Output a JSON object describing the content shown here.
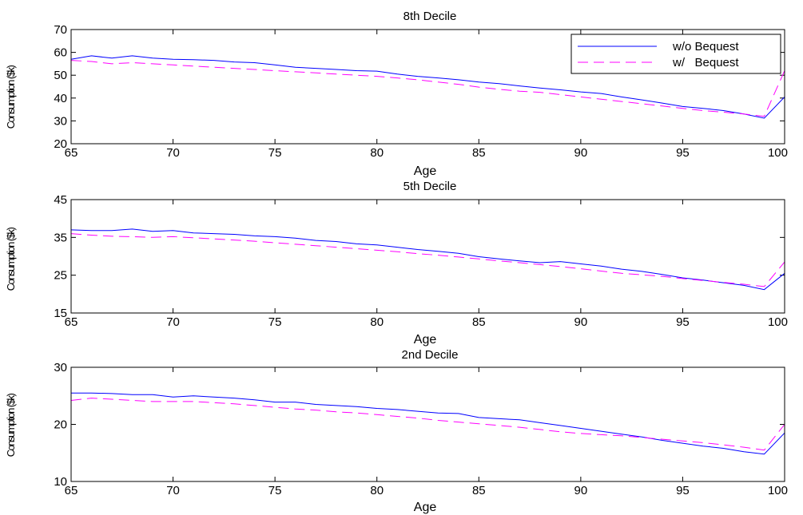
{
  "chart_data": [
    {
      "type": "line",
      "title": "8th Decile",
      "xlabel": "Age",
      "ylabel": "Consumption ($k)",
      "xlim": [
        65,
        100
      ],
      "ylim": [
        20,
        70
      ],
      "xticks": [
        65,
        70,
        75,
        80,
        85,
        90,
        95,
        100
      ],
      "yticks": [
        20,
        30,
        40,
        50,
        60,
        70
      ],
      "legend": "top-right",
      "x": [
        65,
        66,
        67,
        68,
        69,
        70,
        71,
        72,
        73,
        74,
        75,
        76,
        77,
        78,
        79,
        80,
        81,
        82,
        83,
        84,
        85,
        86,
        87,
        88,
        89,
        90,
        91,
        92,
        93,
        94,
        95,
        96,
        97,
        98,
        99,
        100
      ],
      "series": [
        {
          "name": "w/o Bequest",
          "color": "#0000ff",
          "dash": "solid",
          "values": [
            57,
            58.5,
            57.5,
            58.5,
            57.5,
            57,
            56.8,
            56.5,
            55.8,
            55.5,
            54.5,
            53.5,
            53,
            52.5,
            52,
            51.8,
            50.5,
            49.5,
            48.8,
            48,
            47,
            46.3,
            45.3,
            44.4,
            43.6,
            42.7,
            42,
            40.5,
            39.2,
            37.8,
            36.3,
            35.5,
            34.5,
            33,
            31.2,
            40.5
          ]
        },
        {
          "name": "w/   Bequest",
          "color": "#ff00ff",
          "dash": "dashed",
          "values": [
            56.5,
            56,
            55,
            55.5,
            55,
            54.5,
            54,
            53.5,
            53,
            52.5,
            52,
            51.5,
            51,
            50.5,
            50,
            49.5,
            48.8,
            48,
            47,
            46,
            44.8,
            43.8,
            43,
            42.5,
            41.5,
            40.5,
            39.5,
            38.5,
            37.5,
            36.5,
            35.5,
            34.5,
            33.8,
            33,
            32,
            52
          ]
        }
      ]
    },
    {
      "type": "line",
      "title": "5th Decile",
      "xlabel": "Age",
      "ylabel": "Consumption ($k)",
      "xlim": [
        65,
        100
      ],
      "ylim": [
        15,
        45
      ],
      "xticks": [
        65,
        70,
        75,
        80,
        85,
        90,
        95,
        100
      ],
      "yticks": [
        15,
        25,
        35,
        45
      ],
      "x": [
        65,
        66,
        67,
        68,
        69,
        70,
        71,
        72,
        73,
        74,
        75,
        76,
        77,
        78,
        79,
        80,
        81,
        82,
        83,
        84,
        85,
        86,
        87,
        88,
        89,
        90,
        91,
        92,
        93,
        94,
        95,
        96,
        97,
        98,
        99,
        100
      ],
      "series": [
        {
          "name": "w/o Bequest",
          "color": "#0000ff",
          "dash": "solid",
          "values": [
            37,
            36.8,
            36.8,
            37.2,
            36.6,
            36.8,
            36.2,
            36,
            35.8,
            35.4,
            35.2,
            34.8,
            34.2,
            33.9,
            33.3,
            33,
            32.4,
            31.8,
            31.3,
            30.8,
            29.9,
            29.3,
            28.8,
            28.3,
            28.6,
            28,
            27.4,
            26.6,
            26,
            25.2,
            24.3,
            23.7,
            23,
            22.3,
            21.2,
            25.5
          ]
        },
        {
          "name": "w/   Bequest",
          "color": "#ff00ff",
          "dash": "dashed",
          "values": [
            36,
            35.6,
            35.3,
            35.2,
            35,
            35.2,
            34.9,
            34.6,
            34.3,
            34,
            33.6,
            33.2,
            32.8,
            32.4,
            32,
            31.6,
            31.2,
            30.7,
            30.3,
            29.8,
            29.3,
            28.8,
            28.3,
            27.8,
            27.3,
            26.7,
            26.1,
            25.5,
            25.1,
            24.7,
            24.1,
            23.6,
            23.1,
            22.6,
            22,
            28.5
          ]
        }
      ]
    },
    {
      "type": "line",
      "title": "2nd Decile",
      "xlabel": "Age",
      "ylabel": "Consumption ($k)",
      "xlim": [
        65,
        100
      ],
      "ylim": [
        10,
        30
      ],
      "xticks": [
        65,
        70,
        75,
        80,
        85,
        90,
        95,
        100
      ],
      "yticks": [
        10,
        20,
        30
      ],
      "x": [
        65,
        66,
        67,
        68,
        69,
        70,
        71,
        72,
        73,
        74,
        75,
        76,
        77,
        78,
        79,
        80,
        81,
        82,
        83,
        84,
        85,
        86,
        87,
        88,
        89,
        90,
        91,
        92,
        93,
        94,
        95,
        96,
        97,
        98,
        99,
        100
      ],
      "series": [
        {
          "name": "w/o Bequest",
          "color": "#0000ff",
          "dash": "solid",
          "values": [
            25.5,
            25.5,
            25.4,
            25.2,
            25.2,
            24.8,
            25,
            24.8,
            24.6,
            24.3,
            23.9,
            23.9,
            23.5,
            23.3,
            23.1,
            22.8,
            22.6,
            22.3,
            22,
            21.9,
            21.2,
            21,
            20.8,
            20.3,
            19.8,
            19.3,
            18.8,
            18.3,
            17.8,
            17.2,
            16.7,
            16.2,
            15.8,
            15.2,
            14.8,
            18.5
          ]
        },
        {
          "name": "w/   Bequest",
          "color": "#ff00ff",
          "dash": "dashed",
          "values": [
            24.2,
            24.6,
            24.4,
            24.2,
            24,
            24,
            24,
            23.8,
            23.6,
            23.3,
            23,
            22.7,
            22.5,
            22.2,
            22,
            21.7,
            21.4,
            21.1,
            20.7,
            20.4,
            20.1,
            19.8,
            19.5,
            19.1,
            18.7,
            18.4,
            18.2,
            18,
            17.7,
            17.4,
            17.1,
            16.8,
            16.4,
            16,
            15.5,
            20
          ]
        }
      ]
    }
  ]
}
